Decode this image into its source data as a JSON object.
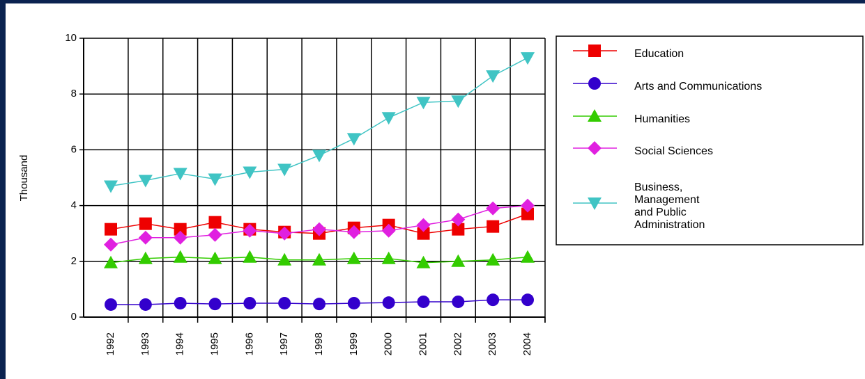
{
  "chart_data": {
    "type": "line",
    "y_label": "Thousand",
    "categories": [
      "1992",
      "1993",
      "1994",
      "1995",
      "1996",
      "1997",
      "1998",
      "1999",
      "2000",
      "2001",
      "2002",
      "2003",
      "2004"
    ],
    "ylim": [
      0,
      10
    ],
    "yticks": [
      0,
      2,
      4,
      6,
      8,
      10
    ],
    "grid": true,
    "series": [
      {
        "name": "Education",
        "color": "#ee0000",
        "marker": "square",
        "values": [
          3.15,
          3.35,
          3.15,
          3.4,
          3.15,
          3.05,
          3.0,
          3.2,
          3.3,
          3.0,
          3.15,
          3.25,
          3.7
        ]
      },
      {
        "name": "Arts and Communications",
        "color": "#3300cc",
        "marker": "circle",
        "values": [
          0.45,
          0.45,
          0.5,
          0.47,
          0.5,
          0.5,
          0.47,
          0.5,
          0.52,
          0.55,
          0.55,
          0.62,
          0.62
        ]
      },
      {
        "name": "Humanities",
        "color": "#33cc00",
        "marker": "triangle-up",
        "values": [
          1.95,
          2.1,
          2.15,
          2.1,
          2.15,
          2.05,
          2.05,
          2.1,
          2.1,
          1.95,
          2.0,
          2.05,
          2.15
        ]
      },
      {
        "name": "Social Sciences",
        "color": "#e020e0",
        "marker": "diamond",
        "values": [
          2.6,
          2.85,
          2.85,
          2.95,
          3.1,
          3.0,
          3.15,
          3.05,
          3.1,
          3.3,
          3.5,
          3.9,
          4.0
        ]
      },
      {
        "name": "Business,\nManagement\nand Public\nAdministration",
        "color": "#40c4c4",
        "marker": "triangle-down",
        "values": [
          4.7,
          4.9,
          5.15,
          4.95,
          5.2,
          5.3,
          5.8,
          6.4,
          7.15,
          7.7,
          7.75,
          8.65,
          9.3
        ]
      }
    ]
  }
}
